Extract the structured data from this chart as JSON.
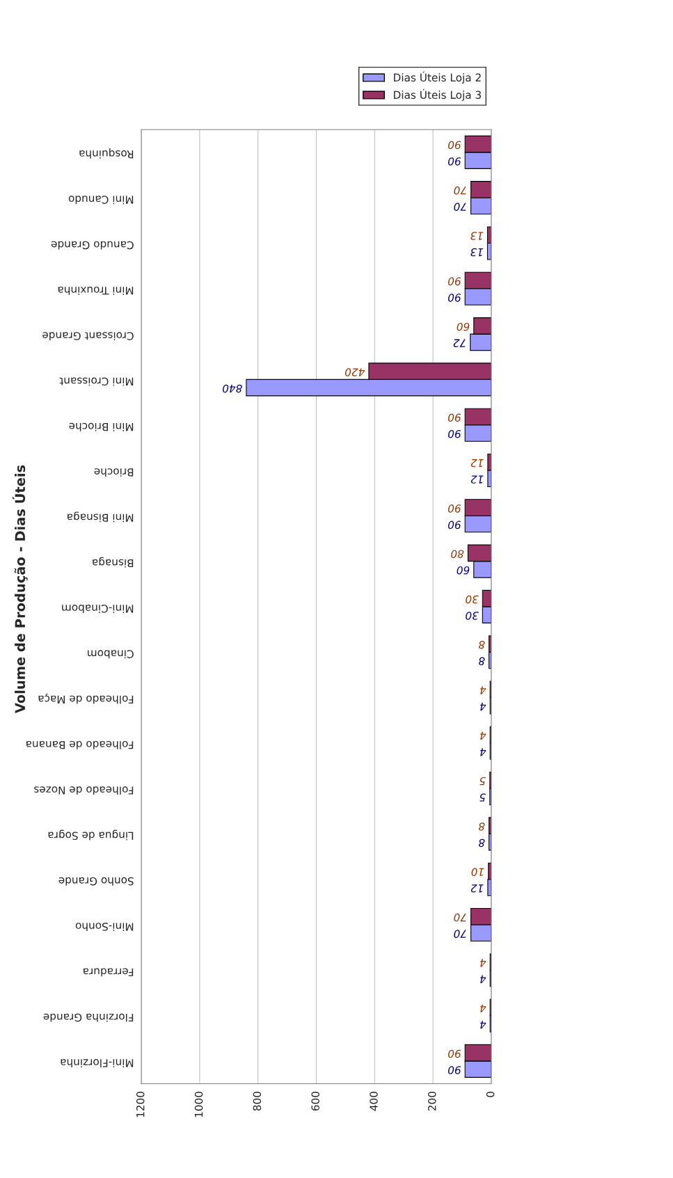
{
  "chart_data": {
    "type": "bar",
    "orientation": "horizontal",
    "title": "Volume de Produção - Dias Úteis",
    "categories": [
      "Rosquinha",
      "Mini Canudo",
      "Canudo Grande",
      "Mini Trouxinha",
      "Croissant Grande",
      "Mini Croissant",
      "Mini Brioche",
      "Brioche",
      "Mini Bisnaga",
      "Bisnaga",
      "Mini-Cinabom",
      "Cinabom",
      "Folheado de Maça",
      "Folheado de Banana",
      "Folheado de Nozes",
      "Lingua de Sogra",
      "Sonho Grande",
      "Mini-Sonho",
      "Ferradura",
      "Florzinha Grande",
      "Mini-Florzinha"
    ],
    "series": [
      {
        "name": "Dias Úteis Loja 2",
        "color": "#9999ff",
        "values": [
          90,
          70,
          13,
          90,
          72,
          840,
          90,
          12,
          90,
          60,
          30,
          8,
          4,
          4,
          5,
          8,
          12,
          70,
          4,
          4,
          90
        ]
      },
      {
        "name": "Dias Úteis Loja 3",
        "color": "#993366",
        "values": [
          90,
          70,
          13,
          90,
          60,
          420,
          90,
          12,
          90,
          80,
          30,
          8,
          4,
          4,
          5,
          8,
          10,
          70,
          4,
          4,
          90
        ]
      }
    ],
    "xlim": [
      1200,
      0
    ],
    "xticks": [
      0,
      200,
      400,
      600,
      800,
      1000,
      1200
    ],
    "grid": "x",
    "legend": "top right",
    "data_labels": true
  }
}
